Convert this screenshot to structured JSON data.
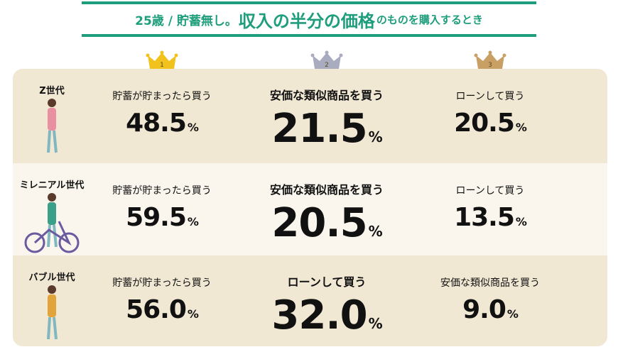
{
  "header": {
    "title_prefix": "25歳 / 貯蓄無し。",
    "title_main": "収入の半分の価格",
    "title_suffix": "のものを購入するとき"
  },
  "ranks": [
    "1",
    "2",
    "3"
  ],
  "unit": "%",
  "rows": [
    {
      "generation": "Z世代",
      "items": [
        {
          "label": "貯蓄が貯まったら買う",
          "value": "48.5"
        },
        {
          "label": "安価な類似商品を買う",
          "value": "21.5"
        },
        {
          "label": "ローンして買う",
          "value": "20.5"
        }
      ]
    },
    {
      "generation": "ミレニアル世代",
      "items": [
        {
          "label": "貯蓄が貯まったら買う",
          "value": "59.5"
        },
        {
          "label": "安価な類似商品を買う",
          "value": "20.5"
        },
        {
          "label": "ローンして買う",
          "value": "13.5"
        }
      ]
    },
    {
      "generation": "バブル世代",
      "items": [
        {
          "label": "貯蓄が貯まったら買う",
          "value": "56.0"
        },
        {
          "label": "ローンして買う",
          "value": "32.0"
        },
        {
          "label": "安価な類似商品を買う",
          "value": "9.0"
        }
      ]
    }
  ]
}
